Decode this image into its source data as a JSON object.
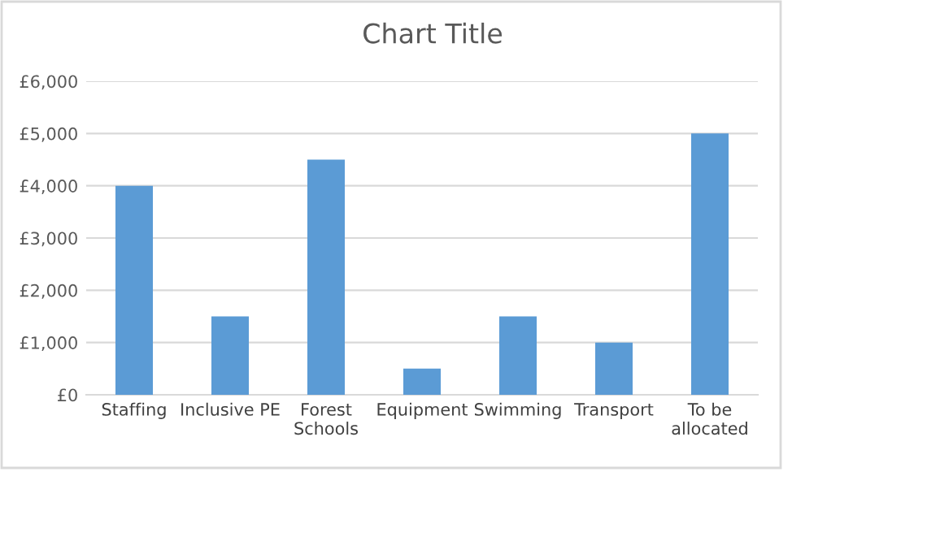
{
  "chart_data": {
    "type": "bar",
    "title": "Chart Title",
    "categories": [
      "Staffing",
      "Inclusive PE",
      "Forest\nSchools",
      "Equipment",
      "Swimming",
      "Transport",
      "To be\nallocated"
    ],
    "values": [
      4000,
      1500,
      4500,
      500,
      1500,
      1000,
      5000
    ],
    "color": "#5b9bd5",
    "ylim": [
      0,
      6000
    ],
    "yticks": [
      {
        "value": 0,
        "label": "£0"
      },
      {
        "value": 1000,
        "label": "£1,000"
      },
      {
        "value": 2000,
        "label": "£2,000"
      },
      {
        "value": 3000,
        "label": "£3,000"
      },
      {
        "value": 4000,
        "label": "£4,000"
      },
      {
        "value": 5000,
        "label": "£5,000"
      },
      {
        "value": 6000,
        "label": "£6,000"
      }
    ],
    "grid": "y"
  }
}
